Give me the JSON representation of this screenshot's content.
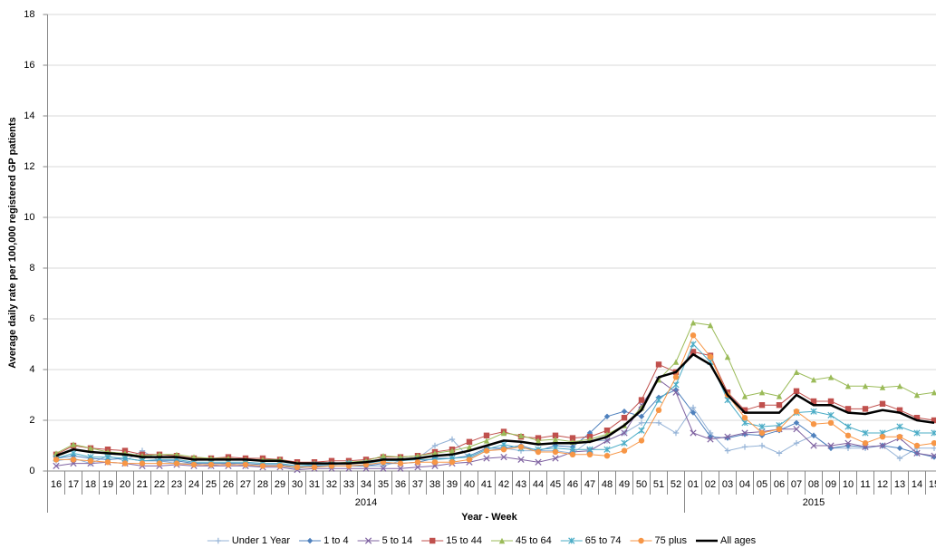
{
  "chart_data": {
    "type": "line",
    "y_label": "Average daily rate per 100,000 registered GP patients",
    "x_label": "Year - Week",
    "category_groups": [
      {
        "name": "2014",
        "categories": [
          "16",
          "17",
          "18",
          "19",
          "20",
          "21",
          "22",
          "23",
          "24",
          "25",
          "26",
          "27",
          "28",
          "29",
          "30",
          "31",
          "32",
          "33",
          "34",
          "35",
          "36",
          "37",
          "38",
          "39",
          "40",
          "41",
          "42",
          "43",
          "44",
          "45",
          "46",
          "47",
          "48",
          "49",
          "50",
          "51",
          "52"
        ]
      },
      {
        "name": "2015",
        "categories": [
          "01",
          "02",
          "03",
          "04",
          "05",
          "06",
          "07",
          "08",
          "09",
          "10",
          "11",
          "12",
          "13",
          "14",
          "15"
        ]
      }
    ],
    "ylim": [
      0,
      18
    ],
    "yticks": [
      0,
      2,
      4,
      6,
      8,
      10,
      12,
      14,
      16,
      18
    ],
    "grid": true,
    "legend": "bottom",
    "series": [
      {
        "name": "Under 1 Year",
        "color": "#95b3d7",
        "marker": "plus",
        "values": [
          0.4,
          0.5,
          0.3,
          0.6,
          0.4,
          0.8,
          0.4,
          0.3,
          0.3,
          0.2,
          0.3,
          0.2,
          0.2,
          0.2,
          0.1,
          0.2,
          0.2,
          0.2,
          0.2,
          0.2,
          0.4,
          0.5,
          1.0,
          1.25,
          0.5,
          0.8,
          0.9,
          0.8,
          0.8,
          0.8,
          0.7,
          1.2,
          1.2,
          1.5,
          1.9,
          1.9,
          1.5,
          2.5,
          1.5,
          0.8,
          0.95,
          1.0,
          0.7,
          1.1,
          1.4,
          0.9,
          0.9,
          0.9,
          1.0,
          0.5,
          0.9,
          0.9
        ]
      },
      {
        "name": "1 to 4",
        "color": "#4f81bd",
        "marker": "diamond",
        "values": [
          0.5,
          0.6,
          0.5,
          0.45,
          0.5,
          0.4,
          0.4,
          0.4,
          0.3,
          0.3,
          0.3,
          0.3,
          0.25,
          0.25,
          0.15,
          0.2,
          0.2,
          0.2,
          0.2,
          0.3,
          0.3,
          0.35,
          0.5,
          0.5,
          0.6,
          0.9,
          0.9,
          1.0,
          0.8,
          1.0,
          0.95,
          1.5,
          2.15,
          2.35,
          2.15,
          2.9,
          3.2,
          2.3,
          1.35,
          1.3,
          1.45,
          1.4,
          1.6,
          1.9,
          1.4,
          0.9,
          1.0,
          0.95,
          1.0,
          0.9,
          0.7,
          0.55
        ]
      },
      {
        "name": "5 to 14",
        "color": "#8064a2",
        "marker": "x",
        "values": [
          0.2,
          0.3,
          0.3,
          0.35,
          0.3,
          0.2,
          0.2,
          0.25,
          0.2,
          0.2,
          0.2,
          0.2,
          0.15,
          0.15,
          0.05,
          0.1,
          0.1,
          0.1,
          0.1,
          0.1,
          0.1,
          0.15,
          0.2,
          0.3,
          0.35,
          0.5,
          0.55,
          0.45,
          0.35,
          0.5,
          0.75,
          0.8,
          1.2,
          1.5,
          2.6,
          3.6,
          3.1,
          1.5,
          1.25,
          1.35,
          1.5,
          1.55,
          1.65,
          1.65,
          1.0,
          1.0,
          1.1,
          0.95,
          1.0,
          1.3,
          0.7,
          0.6
        ]
      },
      {
        "name": "15 to 44",
        "color": "#c0504d",
        "marker": "square",
        "values": [
          0.65,
          1.0,
          0.9,
          0.85,
          0.8,
          0.65,
          0.65,
          0.6,
          0.5,
          0.5,
          0.55,
          0.5,
          0.5,
          0.45,
          0.35,
          0.35,
          0.4,
          0.4,
          0.45,
          0.55,
          0.55,
          0.6,
          0.75,
          0.85,
          1.15,
          1.4,
          1.55,
          1.35,
          1.3,
          1.4,
          1.3,
          1.35,
          1.6,
          2.1,
          2.8,
          4.2,
          3.9,
          4.7,
          4.55,
          3.1,
          2.4,
          2.6,
          2.6,
          3.15,
          2.75,
          2.75,
          2.45,
          2.45,
          2.65,
          2.4,
          2.1,
          2.0
        ]
      },
      {
        "name": "45 to 64",
        "color": "#9bbb59",
        "marker": "triangle",
        "values": [
          0.7,
          1.05,
          0.9,
          0.75,
          0.7,
          0.6,
          0.65,
          0.65,
          0.55,
          0.5,
          0.5,
          0.45,
          0.45,
          0.45,
          0.3,
          0.3,
          0.3,
          0.35,
          0.4,
          0.6,
          0.55,
          0.6,
          0.7,
          0.8,
          0.95,
          1.2,
          1.5,
          1.4,
          1.2,
          1.25,
          1.15,
          1.25,
          1.45,
          1.8,
          2.5,
          3.6,
          4.3,
          5.85,
          5.75,
          4.5,
          2.95,
          3.1,
          2.95,
          3.9,
          3.6,
          3.7,
          3.35,
          3.35,
          3.3,
          3.35,
          3.0,
          3.1
        ]
      },
      {
        "name": "65 to 74",
        "color": "#4bacc6",
        "marker": "star",
        "values": [
          0.5,
          0.7,
          0.55,
          0.55,
          0.5,
          0.4,
          0.45,
          0.45,
          0.35,
          0.35,
          0.35,
          0.35,
          0.3,
          0.3,
          0.2,
          0.25,
          0.25,
          0.3,
          0.3,
          0.4,
          0.4,
          0.45,
          0.45,
          0.5,
          0.55,
          0.85,
          1.05,
          0.9,
          0.85,
          0.9,
          0.85,
          0.85,
          0.85,
          1.1,
          1.6,
          2.8,
          3.4,
          5.0,
          4.3,
          2.8,
          1.9,
          1.75,
          1.8,
          2.3,
          2.35,
          2.2,
          1.75,
          1.5,
          1.5,
          1.75,
          1.5,
          1.5
        ]
      },
      {
        "name": "75 plus",
        "color": "#f79646",
        "marker": "circle",
        "values": [
          0.45,
          0.45,
          0.4,
          0.35,
          0.3,
          0.3,
          0.3,
          0.3,
          0.25,
          0.25,
          0.25,
          0.25,
          0.2,
          0.2,
          0.15,
          0.15,
          0.2,
          0.2,
          0.25,
          0.35,
          0.3,
          0.35,
          0.35,
          0.35,
          0.45,
          0.8,
          0.85,
          0.95,
          0.75,
          0.75,
          0.65,
          0.65,
          0.6,
          0.8,
          1.2,
          2.4,
          3.7,
          5.35,
          4.5,
          3.0,
          2.1,
          1.5,
          1.65,
          2.35,
          1.85,
          1.9,
          1.4,
          1.1,
          1.35,
          1.35,
          1.0,
          1.1
        ]
      },
      {
        "name": "All ages",
        "color": "#000000",
        "marker": "none",
        "values": [
          0.6,
          0.85,
          0.75,
          0.7,
          0.65,
          0.55,
          0.55,
          0.55,
          0.45,
          0.45,
          0.45,
          0.45,
          0.4,
          0.4,
          0.3,
          0.3,
          0.3,
          0.3,
          0.35,
          0.45,
          0.45,
          0.5,
          0.6,
          0.65,
          0.8,
          1.0,
          1.2,
          1.15,
          1.05,
          1.1,
          1.1,
          1.15,
          1.35,
          1.8,
          2.4,
          3.7,
          3.9,
          4.6,
          4.2,
          3.0,
          2.3,
          2.3,
          2.3,
          3.0,
          2.6,
          2.6,
          2.3,
          2.25,
          2.4,
          2.3,
          2.0,
          1.9
        ]
      }
    ]
  }
}
